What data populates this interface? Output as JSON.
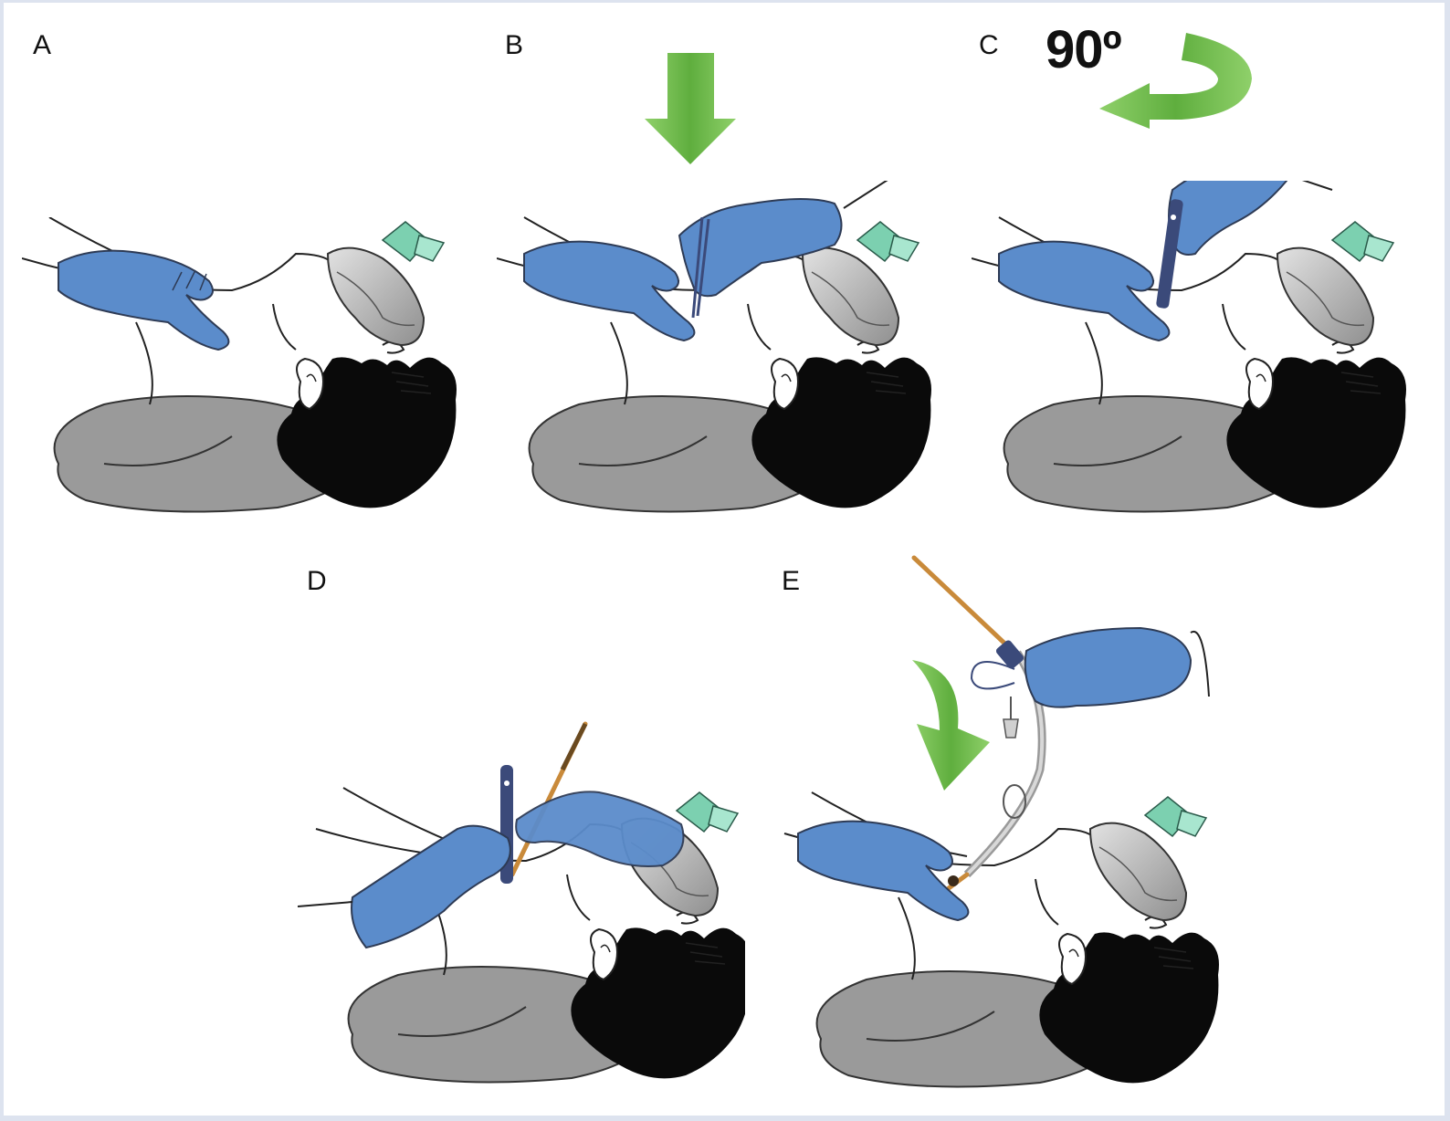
{
  "panels": [
    {
      "id": "A",
      "label": "A"
    },
    {
      "id": "B",
      "label": "B"
    },
    {
      "id": "C",
      "label": "C",
      "rotation_label": "90º"
    },
    {
      "id": "D",
      "label": "D"
    },
    {
      "id": "E",
      "label": "E"
    }
  ],
  "colors": {
    "glove": "#5b8ccb",
    "glove_outline": "#2e3b55",
    "hair": "#0a0a0a",
    "pillow": "#9a9a9a",
    "mask": "#b7b7b7",
    "mask_valve": "#7cd0b0",
    "arrow_green": "#6bb84a",
    "scalpel": "#3b4a7a",
    "bougie": "#c98a3a",
    "background": "#dde3ef"
  },
  "icons": [
    "down-arrow-icon",
    "rotate-arrow-icon",
    "gloved-hand-icon",
    "scalpel-icon",
    "bougie-icon",
    "tracheal-tube-icon",
    "face-mask-icon"
  ]
}
